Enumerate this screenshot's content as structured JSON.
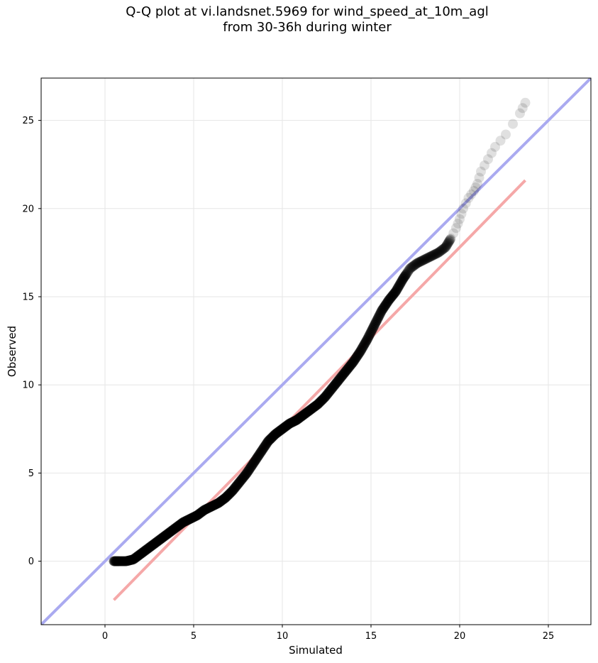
{
  "title_line1": "Q-Q plot at vi.landsnet.5969 for wind_speed_at_10m_agl",
  "title_line2": "from 30-36h during winter",
  "chart_data": {
    "type": "scatter",
    "xlabel": "Simulated",
    "ylabel": "Observed",
    "xlim": [
      -3.6,
      27.4
    ],
    "ylim": [
      -3.6,
      27.4
    ],
    "xticks": [
      0,
      5,
      10,
      15,
      20,
      25
    ],
    "yticks": [
      0,
      5,
      10,
      15,
      20,
      25
    ],
    "grid": true,
    "reference_line": {
      "slope": 1,
      "intercept": 0,
      "color": "#aaaaf0"
    },
    "fit_line": {
      "x": [
        0.5,
        23.7
      ],
      "y": [
        -2.2,
        21.6
      ],
      "color": "#f5a8a8"
    },
    "point_color": "#000000",
    "points": {
      "x": [
        0.5,
        0.8,
        1.2,
        1.6,
        2.0,
        2.4,
        2.8,
        3.2,
        3.6,
        4.0,
        4.4,
        4.8,
        5.2,
        5.6,
        6.0,
        6.4,
        6.8,
        7.2,
        7.6,
        8.0,
        8.4,
        8.8,
        9.2,
        9.6,
        10.0,
        10.4,
        10.8,
        11.2,
        11.6,
        12.0,
        12.4,
        12.8,
        13.2,
        13.6,
        14.0,
        14.4,
        14.8,
        15.2,
        15.6,
        16.0,
        16.4,
        16.8,
        17.2,
        17.6,
        18.0,
        18.4,
        18.8,
        19.2,
        19.5,
        19.8,
        20.0,
        20.2,
        20.5,
        20.8,
        21.0,
        21.2,
        21.6,
        22.0,
        22.6,
        23.4,
        23.7
      ],
      "y": [
        0.0,
        0.0,
        0.0,
        0.1,
        0.4,
        0.7,
        1.0,
        1.3,
        1.6,
        1.9,
        2.2,
        2.4,
        2.6,
        2.9,
        3.1,
        3.3,
        3.6,
        4.0,
        4.5,
        5.0,
        5.6,
        6.2,
        6.8,
        7.2,
        7.5,
        7.8,
        8.0,
        8.3,
        8.6,
        8.9,
        9.3,
        9.8,
        10.3,
        10.8,
        11.3,
        11.9,
        12.6,
        13.4,
        14.2,
        14.8,
        15.3,
        16.0,
        16.6,
        16.9,
        17.1,
        17.3,
        17.5,
        17.8,
        18.3,
        18.9,
        19.4,
        20.0,
        20.6,
        21.0,
        21.4,
        22.1,
        22.8,
        23.5,
        24.2,
        25.4,
        26.0
      ]
    }
  }
}
